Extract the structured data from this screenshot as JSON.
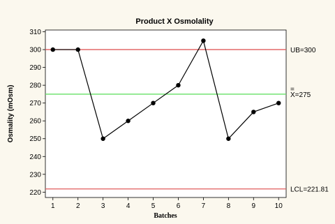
{
  "chart_data": {
    "type": "line",
    "title": "Product X Osmolality",
    "xlabel": "Batches",
    "ylabel": "Osmality (mOsm)",
    "x": [
      1,
      2,
      3,
      4,
      5,
      6,
      7,
      8,
      9,
      10
    ],
    "series": [
      {
        "values": [
          300,
          300,
          250,
          260,
          270,
          280,
          305,
          250,
          265,
          270
        ]
      }
    ],
    "xlim": [
      0.7,
      10.3
    ],
    "ylim": [
      217,
      311
    ],
    "xticks": [
      "1",
      "2",
      "3",
      "4",
      "5",
      "6",
      "7",
      "8",
      "9",
      "10"
    ],
    "yticks": [
      "220",
      "230",
      "240",
      "250",
      "260",
      "270",
      "280",
      "290",
      "300",
      "310"
    ],
    "reference_lines": [
      {
        "value": 300,
        "label": "UB=300",
        "color": "#e05c5c"
      },
      {
        "value": 275,
        "label": "X=275",
        "bar_symbol": "=",
        "color": "#66e066"
      },
      {
        "value": 221.81,
        "label": "LCL=221.81",
        "color": "#e05c5c"
      }
    ],
    "grid": false,
    "legend": "none",
    "colors": {
      "line": "#000000",
      "points": "#000000"
    }
  }
}
